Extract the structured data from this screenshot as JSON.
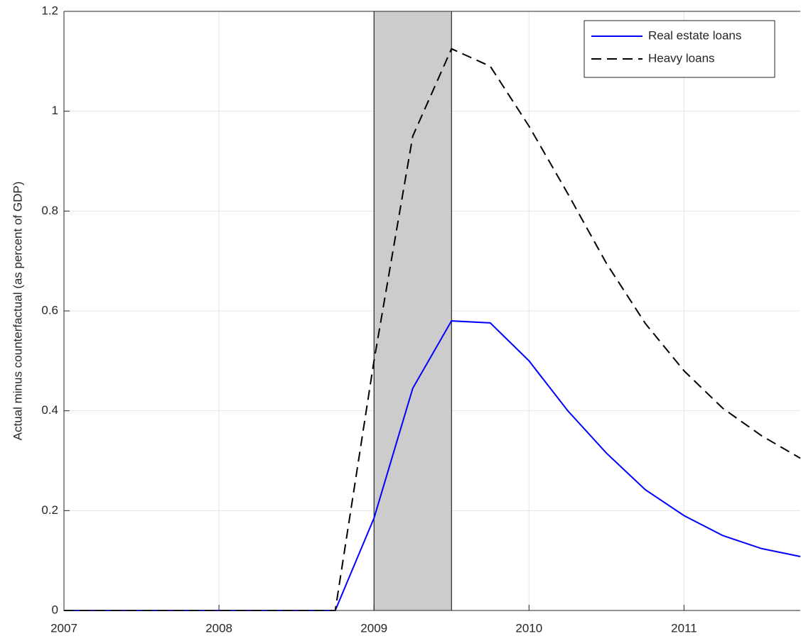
{
  "chart_data": {
    "type": "line",
    "ylabel": "Actual minus counterfactual (as percent of GDP)",
    "x": [
      2007,
      2007.25,
      2007.5,
      2007.75,
      2008,
      2008.25,
      2008.5,
      2008.75,
      2009,
      2009.25,
      2009.5,
      2009.75,
      2010,
      2010.25,
      2010.5,
      2010.75,
      2011,
      2011.25,
      2011.5,
      2011.75
    ],
    "series": [
      {
        "name": "Real estate loans",
        "color": "#0000ff",
        "dash": "solid",
        "values": [
          0,
          0,
          0,
          0,
          0,
          0,
          0,
          0,
          0.185,
          0.445,
          0.58,
          0.576,
          0.5,
          0.4,
          0.315,
          0.242,
          0.19,
          0.15,
          0.124,
          0.108
        ]
      },
      {
        "name": "Heavy loans",
        "color": "#000000",
        "dash": "dashed",
        "values": [
          0,
          0,
          0,
          0,
          0,
          0,
          0,
          0,
          0.5,
          0.95,
          1.125,
          1.09,
          0.97,
          0.835,
          0.695,
          0.575,
          0.48,
          0.405,
          0.35,
          0.305
        ]
      }
    ],
    "shaded_region": [
      2009,
      2009.5
    ],
    "shade_color": "#cccccc",
    "xlim": [
      2007,
      2011.75
    ],
    "xticks": [
      2007,
      2008,
      2009,
      2010,
      2011
    ],
    "ylim": [
      0,
      1.2
    ],
    "yticks": [
      0,
      0.2,
      0.4,
      0.6,
      0.8,
      1,
      1.2
    ],
    "grid": true,
    "legend": "top-right"
  }
}
